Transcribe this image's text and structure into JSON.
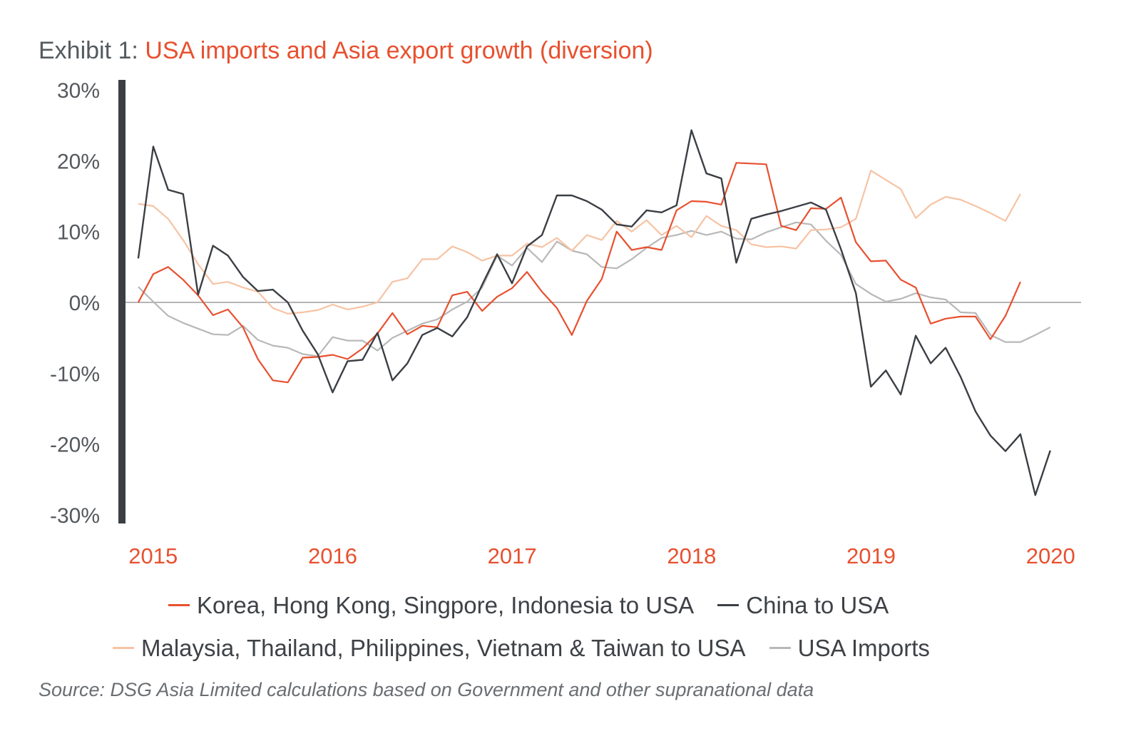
{
  "title": {
    "prefix": "Exhibit 1: ",
    "main": "USA imports and Asia export growth (diversion)"
  },
  "source": "Source: DSG Asia Limited calculations based on Government and other supranational data",
  "colors": {
    "accent": "#e8502f",
    "axis": "#3b3f44",
    "zero_line": "#b5b5b5",
    "series": [
      "#e8502f",
      "#3b3f44",
      "#f6c3a4",
      "#b8b8b8"
    ]
  },
  "chart_data": {
    "type": "line",
    "title": "USA imports and Asia export growth (diversion)",
    "xlabel": "",
    "ylabel": "",
    "xlim": [
      2014.83,
      2020.17
    ],
    "ylim": [
      -30,
      30
    ],
    "x_ticks": [
      2015,
      2016,
      2017,
      2018,
      2019,
      2020
    ],
    "x_tick_labels": [
      "2015",
      "2016",
      "2017",
      "2018",
      "2019",
      "2020"
    ],
    "y_ticks": [
      30,
      20,
      10,
      0,
      -10,
      -20,
      -30
    ],
    "y_tick_labels": [
      "30%",
      "20%",
      "10%",
      "0%",
      "-10%",
      "-20%",
      "-30%"
    ],
    "grid": false,
    "reference_line": 0,
    "legend_position": "bottom",
    "series": [
      {
        "name": "Korea, Hong Kong, Singpore, Indonesia to USA",
        "x_start": 2014.917,
        "x_step": 0.0833,
        "values": [
          0,
          4,
          5,
          3.2,
          1,
          -1.8,
          -1,
          -3.5,
          -8,
          -11,
          -11.3,
          -7.8,
          -7.7,
          -7.4,
          -8,
          -6.5,
          -4.4,
          -1.5,
          -4.5,
          -3.3,
          -3.5,
          1,
          1.5,
          -1.2,
          0.8,
          2,
          4.3,
          1.5,
          -0.8,
          -4.6,
          0.2,
          3.3,
          10,
          7.4,
          7.8,
          7.4,
          13,
          14.3,
          14.2,
          13.8,
          19.7,
          19.6,
          19.5,
          10.8,
          10.2,
          13.3,
          13.2,
          14.8,
          8.5,
          5.8,
          5.9,
          3.2,
          2.1,
          -3,
          -2.3,
          -2,
          -2,
          -5.2,
          -1.9,
          2.9
        ]
      },
      {
        "name": "China to USA",
        "x_start": 2014.917,
        "x_step": 0.0833,
        "values": [
          6.2,
          22,
          15.9,
          15.3,
          1.1,
          8,
          6.6,
          3.6,
          1.6,
          1.8,
          0,
          -4,
          -7.3,
          -12.7,
          -8.3,
          -8.1,
          -4.3,
          -11,
          -8.6,
          -4.6,
          -3.6,
          -4.8,
          -2.1,
          2.5,
          6.8,
          2.7,
          7.9,
          9.5,
          15.1,
          15.1,
          14.3,
          13.1,
          11,
          10.7,
          13,
          12.7,
          13.7,
          24.3,
          18.2,
          17.5,
          5.6,
          11.8,
          12.4,
          12.9,
          13.5,
          14.1,
          13.1,
          7.5,
          1.3,
          -11.9,
          -9.6,
          -13,
          -4.7,
          -8.6,
          -6.4,
          -10.5,
          -15.4,
          -18.8,
          -21,
          -18.6,
          -27.2,
          -20.9
        ]
      },
      {
        "name": "Malaysia, Thailand, Philippines, Vietnam & Taiwan to USA",
        "x_start": 2014.917,
        "x_step": 0.0833,
        "values": [
          13.9,
          13.6,
          11.8,
          8.8,
          5.4,
          2.6,
          2.9,
          2.1,
          1.5,
          -0.8,
          -1.6,
          -1.4,
          -1.1,
          -0.3,
          -1,
          -0.6,
          0,
          2.9,
          3.4,
          6.1,
          6.1,
          7.9,
          7.1,
          5.9,
          6.6,
          6.6,
          8.3,
          7.8,
          9.1,
          7.3,
          9.5,
          8.8,
          11.5,
          10,
          11.6,
          9.5,
          10.8,
          9.2,
          12.2,
          10.8,
          10.2,
          8.2,
          7.8,
          7.9,
          7.6,
          10.2,
          10.3,
          10.6,
          11.8,
          18.6,
          17.3,
          16,
          11.9,
          13.8,
          14.9,
          14.5,
          13.6,
          12.6,
          11.5,
          15.3
        ]
      },
      {
        "name": "USA Imports",
        "x_start": 2014.917,
        "x_step": 0.0833,
        "values": [
          2.2,
          0.1,
          -1.9,
          -2.9,
          -3.7,
          -4.5,
          -4.6,
          -3.3,
          -5.3,
          -6.1,
          -6.4,
          -7.3,
          -7.6,
          -4.9,
          -5.4,
          -5.4,
          -6.8,
          -5,
          -4,
          -3,
          -2.4,
          -1,
          0.1,
          2.1,
          6.6,
          5.2,
          7.7,
          5.7,
          8.6,
          7.3,
          6.8,
          5,
          4.8,
          6.1,
          7.7,
          9.1,
          9.5,
          10.1,
          9.5,
          10,
          9,
          8.9,
          9.9,
          10.6,
          11.3,
          11,
          8.7,
          6.7,
          2.6,
          1.2,
          0.1,
          0.5,
          1.3,
          0.7,
          0.4,
          -1.4,
          -1.5,
          -4.6,
          -5.6,
          -5.6,
          -4.6,
          -3.5
        ]
      }
    ]
  }
}
